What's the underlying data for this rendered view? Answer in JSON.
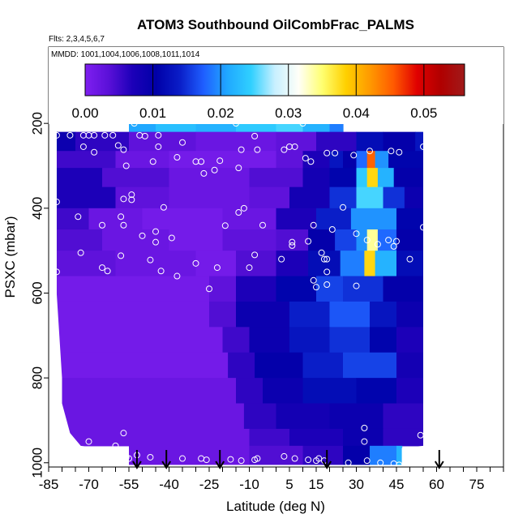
{
  "chart_data": {
    "type": "heatmap",
    "title": "ATOM3 Southbound OilCombFrac_PALMS",
    "flights_label": "Flts: 2,3,4,5,6,7",
    "dates_label": "MMDD: 1001,1004,1006,1008,1011,1014",
    "xlabel": "Latitude (deg N)",
    "ylabel": "PSXC (mbar)",
    "x_ticks": [
      -85,
      -70,
      -55,
      -40,
      -25,
      -10,
      5,
      15,
      30,
      45,
      60,
      75
    ],
    "x_minor_step": 5,
    "xlim": [
      -85,
      85
    ],
    "y_ticks": [
      200,
      400,
      600,
      800,
      1000
    ],
    "ylim": [
      1010,
      20
    ],
    "colorbar": {
      "min": 0.0,
      "max": 0.056,
      "ticks": [
        "0.00",
        "0.01",
        "0.02",
        "0.03",
        "0.04",
        "0.05"
      ],
      "tick_values": [
        0.0,
        0.01,
        0.02,
        0.03,
        0.04,
        0.05
      ],
      "colors": [
        "#7f1ff0",
        "#5a10d8",
        "#1c00b8",
        "#0000a8",
        "#0a1ec8",
        "#1f5fff",
        "#20a8ff",
        "#30d0ff",
        "#c8f0ff",
        "#fffff8",
        "#ffff70",
        "#ffd000",
        "#ff9a00",
        "#ff5a00",
        "#e00000",
        "#b00000",
        "#a01a1a"
      ]
    },
    "arrows_lat": [
      -52,
      -41,
      -21,
      19,
      61
    ],
    "pressure_layers": [
      {
        "p_top": 175,
        "p_bot": 220,
        "segments": [
          [
            -55,
            -45,
            0.021
          ],
          [
            -45,
            -30,
            0.023
          ],
          [
            -30,
            -15,
            0.022
          ],
          [
            -15,
            0,
            0.024
          ],
          [
            0,
            10,
            0.025
          ],
          [
            10,
            20,
            0.022
          ],
          [
            20,
            25,
            0.019
          ]
        ]
      },
      {
        "p_top": 220,
        "p_bot": 265,
        "segments": [
          [
            -82,
            -75,
            0.009
          ],
          [
            -75,
            -55,
            0.006
          ],
          [
            -55,
            -30,
            0.003
          ],
          [
            -30,
            0,
            0.002
          ],
          [
            0,
            15,
            0.003
          ],
          [
            15,
            30,
            0.006
          ],
          [
            30,
            40,
            0.012
          ],
          [
            40,
            52,
            0.01
          ],
          [
            52,
            55,
            0.013
          ]
        ]
      },
      {
        "p_top": 265,
        "p_bot": 305,
        "segments": [
          [
            -82,
            -60,
            0.005
          ],
          [
            -60,
            -40,
            0.002
          ],
          [
            -40,
            0,
            0.001
          ],
          [
            0,
            10,
            0.003
          ],
          [
            10,
            20,
            0.007
          ],
          [
            20,
            25,
            0.013
          ],
          [
            25,
            30,
            0.01
          ],
          [
            30,
            34,
            0.018
          ],
          [
            34,
            37,
            0.045
          ],
          [
            37,
            42,
            0.02
          ],
          [
            42,
            55,
            0.011
          ]
        ]
      },
      {
        "p_top": 305,
        "p_bot": 350,
        "segments": [
          [
            -82,
            -65,
            0.007
          ],
          [
            -65,
            -40,
            0.004
          ],
          [
            -40,
            -10,
            0.002
          ],
          [
            -10,
            10,
            0.004
          ],
          [
            10,
            20,
            0.008
          ],
          [
            20,
            30,
            0.011
          ],
          [
            30,
            34,
            0.024
          ],
          [
            34,
            38,
            0.038
          ],
          [
            38,
            44,
            0.022
          ],
          [
            44,
            55,
            0.01
          ]
        ]
      },
      {
        "p_top": 350,
        "p_bot": 400,
        "segments": [
          [
            -82,
            -60,
            0.007
          ],
          [
            -60,
            -40,
            0.003
          ],
          [
            -40,
            -10,
            0.002
          ],
          [
            -10,
            5,
            0.003
          ],
          [
            5,
            20,
            0.008
          ],
          [
            20,
            30,
            0.015
          ],
          [
            30,
            40,
            0.025
          ],
          [
            40,
            48,
            0.015
          ],
          [
            48,
            55,
            0.009
          ]
        ]
      },
      {
        "p_top": 400,
        "p_bot": 450,
        "segments": [
          [
            -82,
            -70,
            0.005
          ],
          [
            -70,
            -50,
            0.002
          ],
          [
            -50,
            -20,
            0.001
          ],
          [
            -20,
            0,
            0.002
          ],
          [
            0,
            15,
            0.007
          ],
          [
            15,
            28,
            0.014
          ],
          [
            28,
            45,
            0.02
          ],
          [
            45,
            55,
            0.011
          ]
        ]
      },
      {
        "p_top": 450,
        "p_bot": 500,
        "segments": [
          [
            -82,
            -65,
            0.004
          ],
          [
            -65,
            -40,
            0.002
          ],
          [
            -40,
            -20,
            0.001
          ],
          [
            -20,
            0,
            0.003
          ],
          [
            0,
            12,
            0.004
          ],
          [
            12,
            22,
            0.01
          ],
          [
            22,
            30,
            0.016
          ],
          [
            30,
            34,
            0.02
          ],
          [
            34,
            38,
            0.034
          ],
          [
            38,
            45,
            0.018
          ],
          [
            45,
            55,
            0.01
          ]
        ]
      },
      {
        "p_top": 500,
        "p_bot": 560,
        "segments": [
          [
            -82,
            -60,
            0.003
          ],
          [
            -60,
            -30,
            0.002
          ],
          [
            -30,
            -15,
            0.001
          ],
          [
            -15,
            0,
            0.004
          ],
          [
            0,
            12,
            0.007
          ],
          [
            12,
            24,
            0.012
          ],
          [
            24,
            33,
            0.019
          ],
          [
            33,
            37,
            0.038
          ],
          [
            37,
            45,
            0.022
          ],
          [
            45,
            55,
            0.012
          ]
        ]
      },
      {
        "p_top": 560,
        "p_bot": 620,
        "segments": [
          [
            -82,
            -25,
            0.001
          ],
          [
            -25,
            -15,
            0.003
          ],
          [
            -15,
            0,
            0.007
          ],
          [
            0,
            15,
            0.011
          ],
          [
            15,
            25,
            0.016
          ],
          [
            25,
            40,
            0.015
          ],
          [
            40,
            55,
            0.01
          ]
        ]
      },
      {
        "p_top": 620,
        "p_bot": 680,
        "segments": [
          [
            -82,
            -25,
            0.001
          ],
          [
            -25,
            -15,
            0.004
          ],
          [
            -15,
            5,
            0.009
          ],
          [
            5,
            20,
            0.014
          ],
          [
            20,
            35,
            0.017
          ],
          [
            35,
            45,
            0.013
          ],
          [
            45,
            55,
            0.009
          ]
        ]
      },
      {
        "p_top": 680,
        "p_bot": 740,
        "segments": [
          [
            -82,
            -20,
            0.001
          ],
          [
            -20,
            -10,
            0.005
          ],
          [
            -10,
            5,
            0.009
          ],
          [
            5,
            20,
            0.013
          ],
          [
            20,
            35,
            0.015
          ],
          [
            35,
            45,
            0.011
          ],
          [
            45,
            55,
            0.007
          ]
        ]
      },
      {
        "p_top": 740,
        "p_bot": 800,
        "segments": [
          [
            -82,
            -18,
            0.001
          ],
          [
            -18,
            -8,
            0.006
          ],
          [
            -8,
            10,
            0.01
          ],
          [
            10,
            25,
            0.014
          ],
          [
            25,
            45,
            0.016
          ],
          [
            45,
            55,
            0.008
          ]
        ]
      },
      {
        "p_top": 800,
        "p_bot": 860,
        "segments": [
          [
            -82,
            -15,
            0.002
          ],
          [
            -15,
            -5,
            0.006
          ],
          [
            -5,
            10,
            0.009
          ],
          [
            10,
            30,
            0.012
          ],
          [
            30,
            45,
            0.011
          ],
          [
            45,
            55,
            0.007
          ]
        ]
      },
      {
        "p_top": 860,
        "p_bot": 920,
        "segments": [
          [
            -82,
            -12,
            0.002
          ],
          [
            -12,
            0,
            0.006
          ],
          [
            0,
            20,
            0.008
          ],
          [
            20,
            40,
            0.009
          ],
          [
            40,
            55,
            0.006
          ]
        ]
      },
      {
        "p_top": 920,
        "p_bot": 960,
        "segments": [
          [
            -82,
            -10,
            0.002
          ],
          [
            -10,
            5,
            0.005
          ],
          [
            5,
            25,
            0.007
          ],
          [
            25,
            40,
            0.009
          ],
          [
            40,
            55,
            0.006
          ]
        ]
      },
      {
        "p_top": 960,
        "p_bot": 1005,
        "segments": [
          [
            -55,
            -10,
            0.002
          ],
          [
            -10,
            10,
            0.004
          ],
          [
            10,
            25,
            0.006
          ],
          [
            25,
            35,
            0.01
          ],
          [
            35,
            45,
            0.019
          ],
          [
            45,
            47,
            0.022
          ]
        ]
      }
    ],
    "left_edge": [
      [
        175,
        -55
      ],
      [
        220,
        -82
      ],
      [
        300,
        -82
      ],
      [
        400,
        -82
      ],
      [
        500,
        -82
      ],
      [
        600,
        -82
      ],
      [
        700,
        -81
      ],
      [
        800,
        -80
      ],
      [
        860,
        -80
      ],
      [
        930,
        -77
      ],
      [
        960,
        -73
      ],
      [
        975,
        -55
      ],
      [
        1005,
        -55
      ]
    ],
    "right_edge": [
      [
        175,
        25
      ],
      [
        220,
        55
      ],
      [
        600,
        55
      ],
      [
        960,
        55
      ],
      [
        965,
        47
      ],
      [
        1005,
        47
      ]
    ],
    "points": [
      [
        -52,
        192
      ],
      [
        -53,
        200
      ],
      [
        -82,
        228
      ],
      [
        -77,
        228
      ],
      [
        -72,
        228
      ],
      [
        -70,
        228
      ],
      [
        -68,
        228
      ],
      [
        -64,
        228
      ],
      [
        -61,
        228
      ],
      [
        -51,
        228
      ],
      [
        -49,
        230
      ],
      [
        -44,
        228
      ],
      [
        -35,
        245
      ],
      [
        -59,
        252
      ],
      [
        -72,
        255
      ],
      [
        -57,
        262
      ],
      [
        -44,
        255
      ],
      [
        -37,
        280
      ],
      [
        -46,
        290
      ],
      [
        -8,
        230
      ],
      [
        -7,
        262
      ],
      [
        -13,
        262
      ],
      [
        5,
        255
      ],
      [
        7,
        255
      ],
      [
        3,
        262
      ],
      [
        -68,
        268
      ],
      [
        -21,
        288
      ],
      [
        -30,
        290
      ],
      [
        -28,
        290
      ],
      [
        -23,
        310
      ],
      [
        -27,
        318
      ],
      [
        -14,
        305
      ],
      [
        11,
        282
      ],
      [
        19,
        270
      ],
      [
        22,
        270
      ],
      [
        13,
        290
      ],
      [
        29,
        275
      ],
      [
        35,
        265
      ],
      [
        43,
        265
      ],
      [
        55,
        255
      ],
      [
        46,
        268
      ],
      [
        -84,
        368
      ],
      [
        -82,
        385
      ],
      [
        -56,
        300
      ],
      [
        -54,
        368
      ],
      [
        -54,
        380
      ],
      [
        -57,
        378
      ],
      [
        -74,
        420
      ],
      [
        -42,
        398
      ],
      [
        -58,
        420
      ],
      [
        -45,
        455
      ],
      [
        -50,
        465
      ],
      [
        -45,
        480
      ],
      [
        -39,
        470
      ],
      [
        -65,
        440
      ],
      [
        -57,
        440
      ],
      [
        -14,
        410
      ],
      [
        -5,
        440
      ],
      [
        -19,
        441
      ],
      [
        -12,
        400
      ],
      [
        14,
        440
      ],
      [
        25,
        398
      ],
      [
        21,
        450
      ],
      [
        12,
        478
      ],
      [
        6,
        480
      ],
      [
        6,
        488
      ],
      [
        -73,
        505
      ],
      [
        -58,
        512
      ],
      [
        -63,
        548
      ],
      [
        -65,
        540
      ],
      [
        -82,
        550
      ],
      [
        -47,
        522
      ],
      [
        -43,
        548
      ],
      [
        -30,
        530
      ],
      [
        -22,
        540
      ],
      [
        -25,
        590
      ],
      [
        -37,
        560
      ],
      [
        -10,
        540
      ],
      [
        2,
        520
      ],
      [
        -8,
        510
      ],
      [
        17,
        505
      ],
      [
        18,
        520
      ],
      [
        19,
        550
      ],
      [
        30,
        460
      ],
      [
        34,
        475
      ],
      [
        42,
        475
      ],
      [
        44,
        490
      ],
      [
        50,
        520
      ],
      [
        55,
        445
      ],
      [
        38,
        485
      ],
      [
        45,
        478
      ],
      [
        19,
        520
      ],
      [
        19,
        580
      ],
      [
        14,
        570
      ],
      [
        15,
        586
      ],
      [
        30,
        583
      ],
      [
        -15,
        200
      ],
      [
        10,
        200
      ],
      [
        33,
        918
      ],
      [
        33,
        950
      ],
      [
        54,
        935
      ],
      [
        -47,
        987
      ],
      [
        -52,
        982
      ],
      [
        -56,
        987
      ],
      [
        -57,
        930
      ],
      [
        -55,
        990
      ],
      [
        -35,
        990
      ],
      [
        -28,
        990
      ],
      [
        -26,
        993
      ],
      [
        -17,
        992
      ],
      [
        -13,
        995
      ],
      [
        -8,
        993
      ],
      [
        -7,
        990
      ],
      [
        3,
        985
      ],
      [
        7,
        990
      ],
      [
        12,
        993
      ],
      [
        15,
        995
      ],
      [
        16,
        990
      ],
      [
        18,
        995
      ],
      [
        27,
        1000
      ],
      [
        34,
        995
      ],
      [
        39,
        1000
      ],
      [
        44,
        1002
      ],
      [
        46,
        1005
      ],
      [
        -70,
        950
      ],
      [
        -60,
        960
      ]
    ]
  }
}
